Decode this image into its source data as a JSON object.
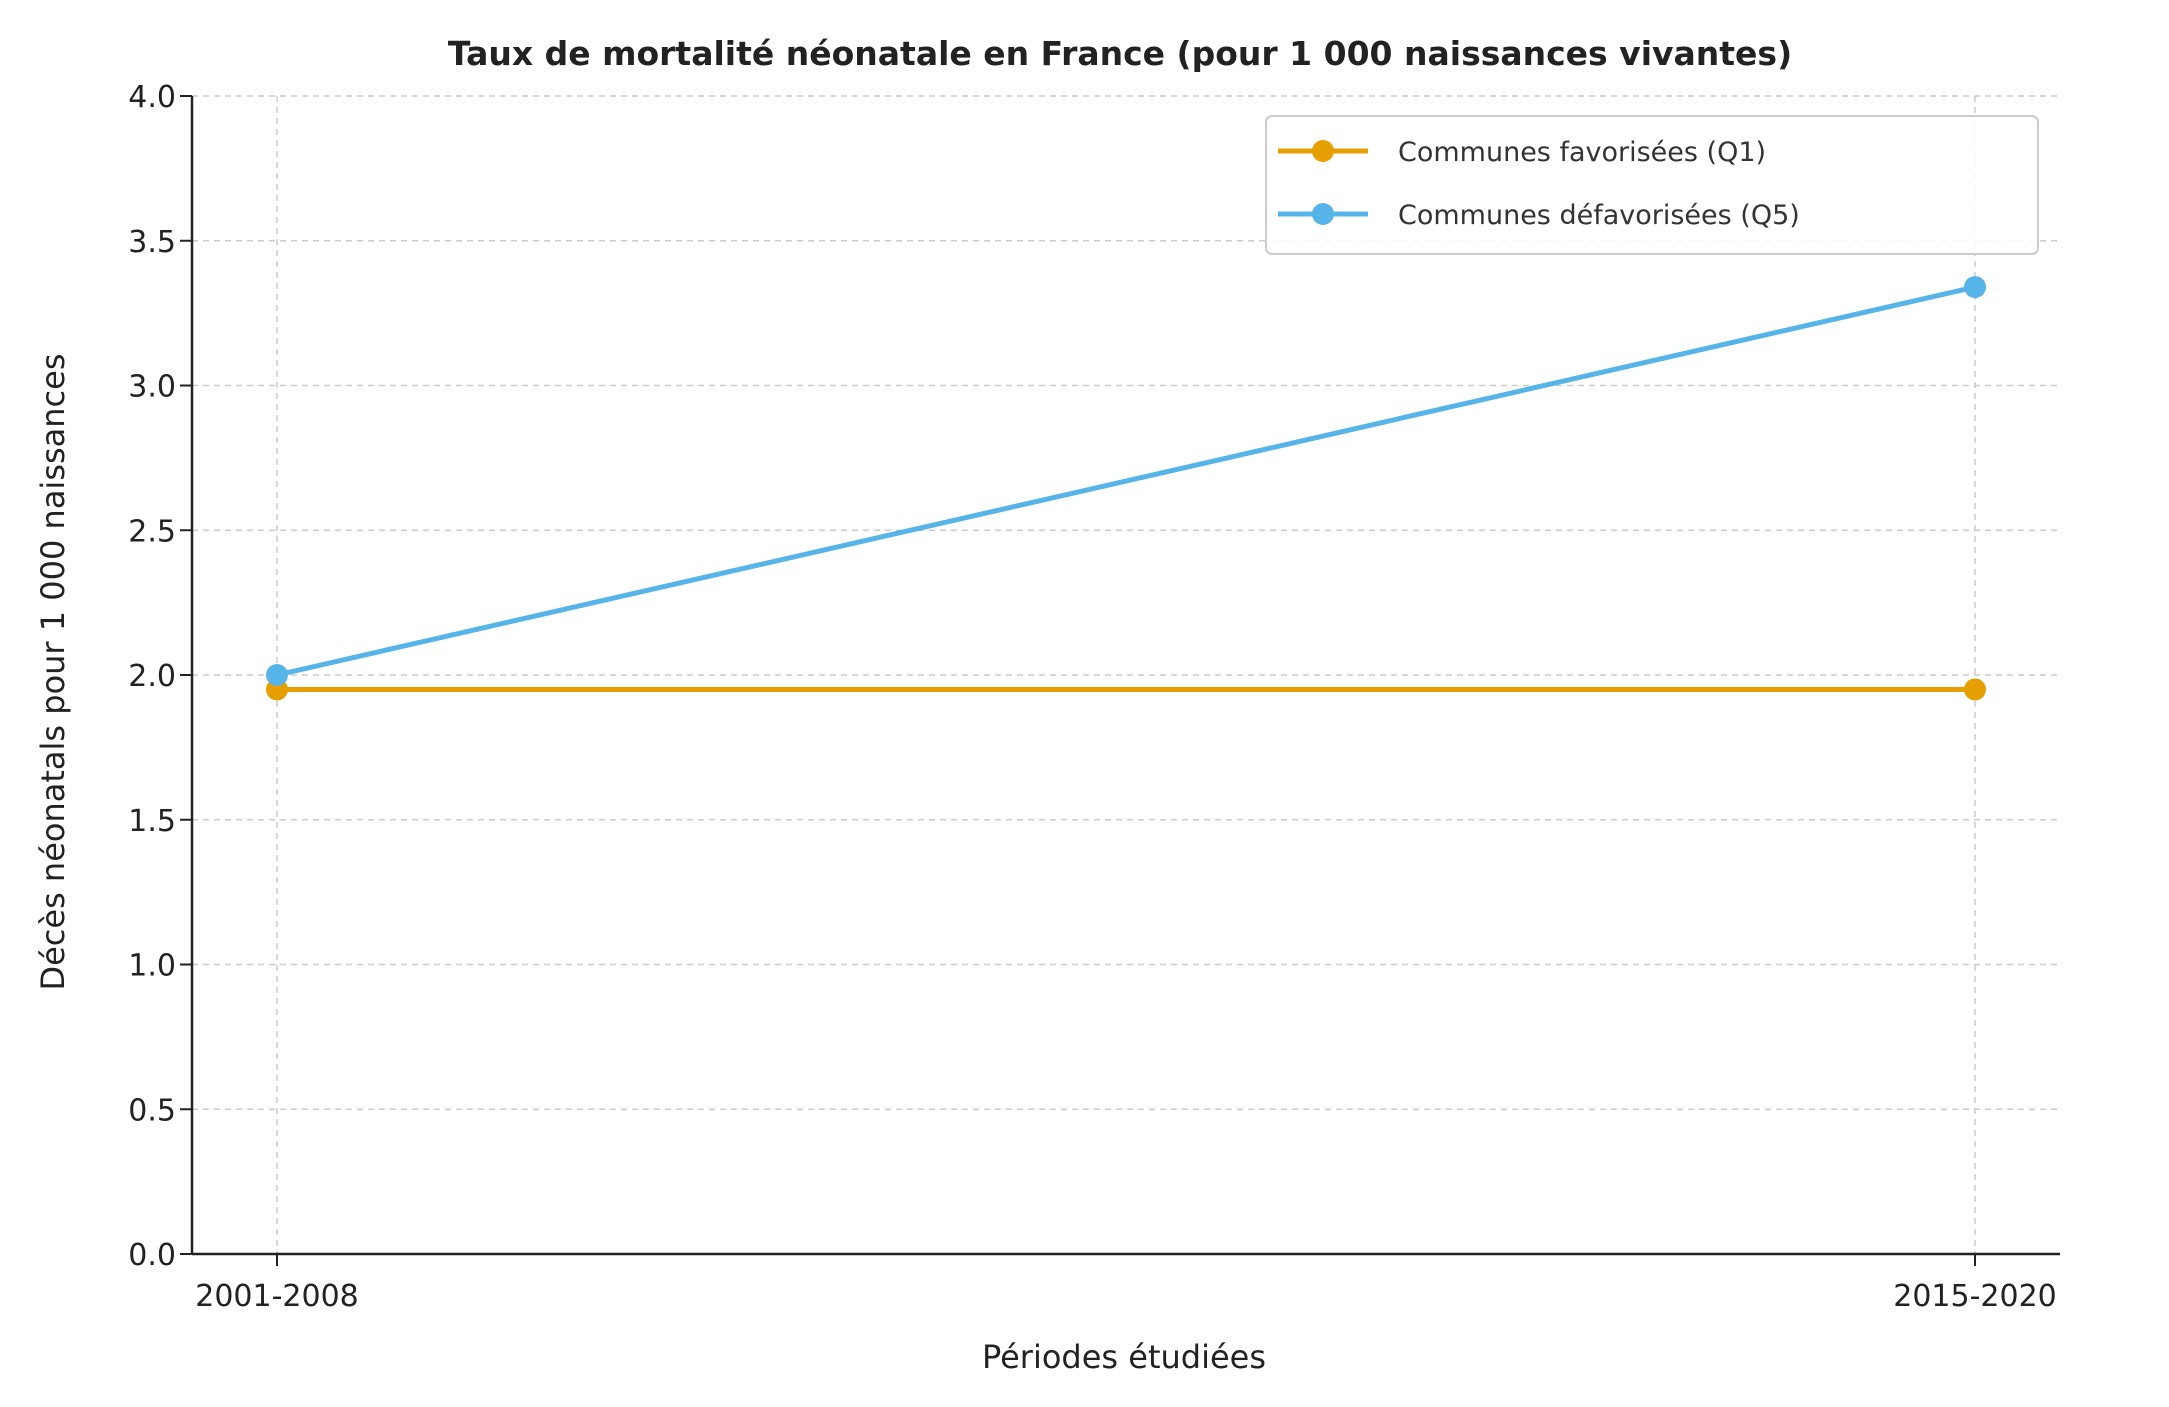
{
  "chart_data": {
    "type": "line",
    "title": "Taux de mortalité néonatale en France (pour 1 000 naissances vivantes)",
    "xlabel": "Périodes étudiées",
    "ylabel": "Décès néonatals pour 1 000 naissances",
    "categories": [
      "2001-2008",
      "2015-2020"
    ],
    "ylim": [
      0,
      4
    ],
    "yticks": [
      "0.0",
      "0.5",
      "1.0",
      "1.5",
      "2.0",
      "2.5",
      "3.0",
      "3.5",
      "4.0"
    ],
    "grid": true,
    "legend_position": "top-right",
    "series": [
      {
        "name": "Communes favorisées (Q1)",
        "values": [
          1.95,
          1.95
        ],
        "color": "#E69F00"
      },
      {
        "name": "Communes défavorisées (Q5)",
        "values": [
          2.0,
          3.34
        ],
        "color": "#56B4E9"
      }
    ]
  }
}
